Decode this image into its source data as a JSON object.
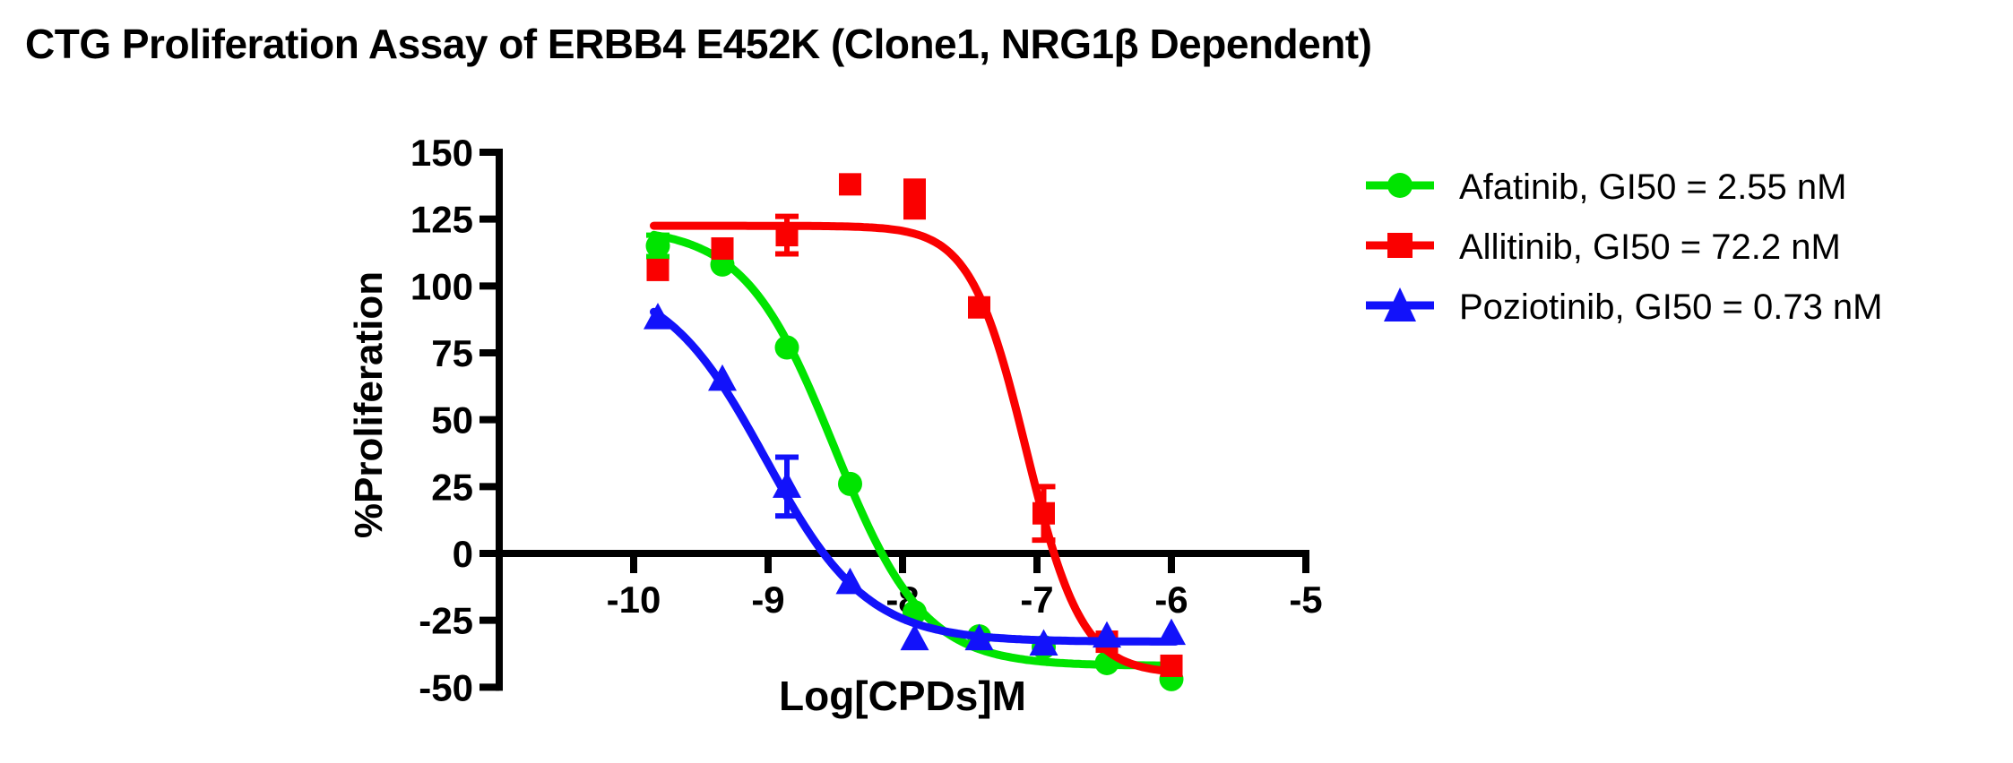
{
  "title": "CTG Proliferation Assay of ERBB4 E452K (Clone1, NRG1β Dependent)",
  "chart_data": {
    "type": "scatter",
    "title": "CTG Proliferation Assay of ERBB4 E452K (Clone1, NRG1β Dependent)",
    "xlabel": "Log[CPDs]M",
    "ylabel": "%Proliferation",
    "xlim": [
      -11,
      -5
    ],
    "ylim": [
      -50,
      150
    ],
    "x_ticks": [
      -10,
      -9,
      -8,
      -7,
      -6,
      -5
    ],
    "y_ticks": [
      150,
      125,
      100,
      75,
      50,
      25,
      0,
      -25,
      -50
    ],
    "grid": false,
    "legend_position": "right",
    "axis_color": "#000000",
    "series": [
      {
        "name": "Afatinib",
        "gi50": "2.55 nM",
        "legend_label": "Afatinib, GI50 = 2.55 nM",
        "color": "#00e400",
        "marker": "circle",
        "points": [
          {
            "x": -9.82,
            "y": 115,
            "err": 4
          },
          {
            "x": -9.34,
            "y": 108,
            "err": 0
          },
          {
            "x": -8.86,
            "y": 77,
            "err": 0
          },
          {
            "x": -8.39,
            "y": 26,
            "err": 0
          },
          {
            "x": -7.91,
            "y": -22,
            "err": 0
          },
          {
            "x": -7.43,
            "y": -31,
            "err": 0
          },
          {
            "x": -6.95,
            "y": -35,
            "err": 0
          },
          {
            "x": -6.48,
            "y": -41,
            "err": 0
          },
          {
            "x": -6.0,
            "y": -47,
            "err": 0
          }
        ],
        "fit": {
          "model": "4PL",
          "top": 122,
          "bottom": -42,
          "logec50": -8.51,
          "hill": 1.3,
          "x_range": [
            -9.85,
            -5.95
          ]
        }
      },
      {
        "name": "Allitinib",
        "gi50": "72.2 nM",
        "legend_label": "Allitinib, GI50 = 72.2 nM",
        "color": "#fa0000",
        "marker": "square",
        "points": [
          {
            "x": -9.82,
            "y": 106,
            "err": 0
          },
          {
            "x": -9.34,
            "y": 114,
            "err": 0
          },
          {
            "x": -8.86,
            "y": 119,
            "err": 7
          },
          {
            "x": -8.39,
            "y": 138,
            "err": 0
          },
          {
            "x": -7.91,
            "y": 136,
            "err": 0
          },
          {
            "x": -7.91,
            "y": 129,
            "err": 0
          },
          {
            "x": -7.43,
            "y": 92,
            "err": 0
          },
          {
            "x": -6.95,
            "y": 15,
            "err": 10
          },
          {
            "x": -6.48,
            "y": -33,
            "err": 0
          },
          {
            "x": -6.0,
            "y": -42,
            "err": 0
          }
        ],
        "fit": {
          "model": "4PL",
          "top": 122.5,
          "bottom": -45,
          "logec50": -7.08,
          "hill": 2.1,
          "x_range": [
            -9.85,
            -5.95
          ]
        }
      },
      {
        "name": "Poziotinib",
        "gi50": "0.73 nM",
        "legend_label": "Poziotinib, GI50 = 0.73 nM",
        "color": "#1212fa",
        "marker": "triangle",
        "points": [
          {
            "x": -9.82,
            "y": 88,
            "err": 0
          },
          {
            "x": -9.34,
            "y": 65,
            "err": 0
          },
          {
            "x": -8.86,
            "y": 25,
            "err": 11
          },
          {
            "x": -8.39,
            "y": -11,
            "err": 0
          },
          {
            "x": -7.91,
            "y": -32,
            "err": 0
          },
          {
            "x": -7.43,
            "y": -32,
            "err": 0
          },
          {
            "x": -6.95,
            "y": -34,
            "err": 0
          },
          {
            "x": -6.48,
            "y": -31,
            "err": 0
          },
          {
            "x": -6.0,
            "y": -30,
            "err": 0
          }
        ],
        "fit": {
          "model": "4PL",
          "top": 104,
          "bottom": -33,
          "logec50": -9.02,
          "hill": 1.15,
          "x_range": [
            -9.85,
            -5.97
          ]
        }
      }
    ]
  }
}
